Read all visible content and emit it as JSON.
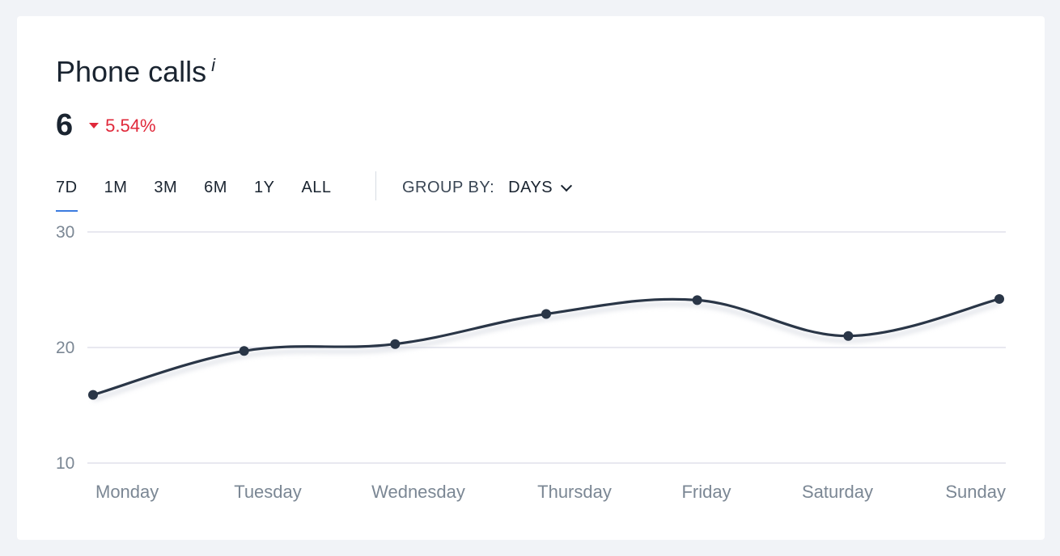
{
  "header": {
    "title": "Phone calls",
    "info_glyph": "i",
    "value": "6",
    "delta": "5.54%",
    "delta_icon": "caret-down-icon",
    "delta_color": "#e0283a"
  },
  "range_tabs": [
    {
      "label": "7D",
      "active": true
    },
    {
      "label": "1M",
      "active": false
    },
    {
      "label": "3M",
      "active": false
    },
    {
      "label": "6M",
      "active": false
    },
    {
      "label": "1Y",
      "active": false
    },
    {
      "label": "ALL",
      "active": false
    }
  ],
  "group_by": {
    "label": "GROUP BY:",
    "value": "DAYS",
    "icon": "chevron-down-icon"
  },
  "chart_data": {
    "type": "line",
    "title": "",
    "xlabel": "",
    "ylabel": "",
    "categories": [
      "Monday",
      "Tuesday",
      "Wednesday",
      "Thursday",
      "Friday",
      "Saturday",
      "Sunday"
    ],
    "series": [
      {
        "values": [
          15.9,
          19.7,
          20.3,
          22.9,
          24.1,
          21.0,
          24.2
        ],
        "color": "#2a3647"
      }
    ],
    "ylim": [
      10,
      30
    ],
    "yticks": [
      "10",
      "20",
      "30"
    ],
    "grid": true,
    "legend": "none"
  }
}
